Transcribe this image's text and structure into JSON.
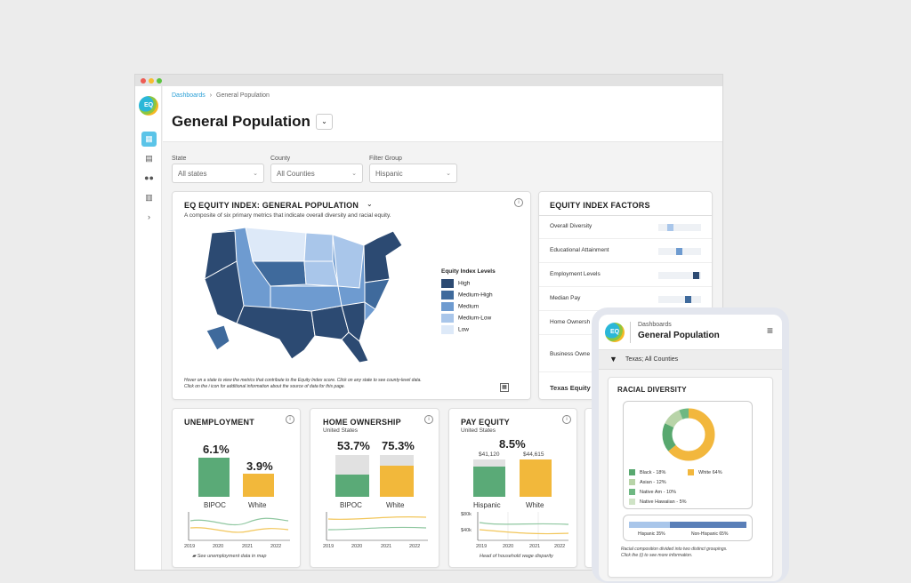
{
  "breadcrumb": {
    "root": "Dashboards",
    "sep": "›",
    "current": "General Population"
  },
  "page_title": "General Population",
  "filters": {
    "state": {
      "label": "State",
      "value": "All states"
    },
    "county": {
      "label": "County",
      "value": "All Counties"
    },
    "group": {
      "label": "Filter Group",
      "value": "Hispanic"
    }
  },
  "map_card": {
    "title": "EQ EQUITY INDEX: GENERAL POPULATION",
    "subtitle": "A composite of six primary metrics that indicate overall diversity and racial equity.",
    "legend_title": "Equity Index Levels",
    "legend": [
      {
        "label": "High",
        "color": "#2c4a72"
      },
      {
        "label": "Medium-High",
        "color": "#3f6a9c"
      },
      {
        "label": "Medium",
        "color": "#6e9bd0"
      },
      {
        "label": "Medium-Low",
        "color": "#a9c6ea"
      },
      {
        "label": "Low",
        "color": "#dde9f8"
      }
    ],
    "foot1": "Hover on a state to view the metrics that contribute to the Equity Index score. Click on any state to see county-level data.",
    "foot2": "Click on the i icon for additional information about the source of data for this page."
  },
  "factors": {
    "title": "EQUITY INDEX FACTORS",
    "items": [
      "Overall Diversity",
      "Educational Attainment",
      "Employment Levels",
      "Median Pay",
      "Home Ownersh",
      "Business Owne",
      "Texas Equity"
    ]
  },
  "unemployment": {
    "title": "UNEMPLOYMENT",
    "bipoc_value": "6.1%",
    "white_value": "3.9%",
    "bipoc_label": "BIPOC",
    "white_label": "White",
    "years": [
      "2019",
      "2020",
      "2021",
      "2022"
    ],
    "note": "See unemployment data in map"
  },
  "home": {
    "title": "HOME OWNERSHIP",
    "sub": "United States",
    "bipoc_value": "53.7%",
    "white_value": "75.3%",
    "bipoc_label": "BIPOC",
    "white_label": "White",
    "years": [
      "2019",
      "2020",
      "2021",
      "2022"
    ]
  },
  "pay": {
    "title": "PAY EQUITY",
    "sub": "United States",
    "gap": "8.5%",
    "hisp_amount": "$41,120",
    "white_amount": "$44,615",
    "hisp_label": "Hispanic",
    "white_label": "White",
    "y80": "$80k",
    "y40": "$40k",
    "years": [
      "2019",
      "2020",
      "2021",
      "2022"
    ],
    "note": "Head of household wage disparity"
  },
  "phone": {
    "crumb": "Dashboards",
    "title": "General Population",
    "filter": "Texas; All Counties",
    "card_title": "RACIAL DIVERSITY",
    "legend": [
      {
        "label": "Black - 18%",
        "color": "#58a86f"
      },
      {
        "label": "White 64%",
        "color": "#f2b73d"
      },
      {
        "label": "Asian - 12%",
        "color": "#b8d4a8"
      },
      {
        "label": "Native Am - 10%",
        "color": "#6eb882"
      },
      {
        "label": "Native Hawaiian - 5%",
        "color": "#cfe3c6"
      }
    ],
    "bar_left": "Hispanic 35%",
    "bar_right": "Non-Hispanic 65%",
    "note1": "Racial composition divided into two distinct groupings.",
    "note2": "Click the (i) to see more information."
  },
  "colors": {
    "bipoc": "#5aaa77",
    "white": "#f2b83b",
    "gray": "#e1e1e1",
    "accent": "#2a9fd6"
  }
}
